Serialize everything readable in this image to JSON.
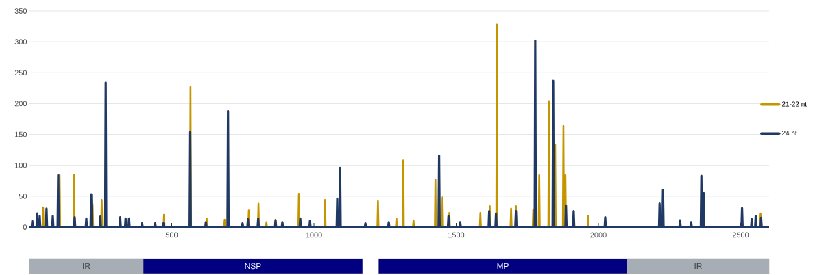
{
  "chart_data": [
    {
      "type": "line",
      "xlim": [
        0,
        2600
      ],
      "ylim": [
        0,
        350
      ],
      "xticks": [
        500,
        1000,
        1500,
        2000,
        2500
      ],
      "yticks": [
        0,
        50,
        100,
        150,
        200,
        250,
        300,
        350
      ],
      "grid": "y",
      "legend": "right",
      "marker": "none",
      "line_style": "solid",
      "series": [
        {
          "name": "21-22 nt",
          "color": "#c59500",
          "x": [
            0,
            46,
            48,
            50,
            104,
            106,
            108,
            155,
            157,
            159,
            220,
            222,
            224,
            252,
            254,
            256,
            471,
            473,
            475,
            564,
            566,
            568,
            621,
            623,
            625,
            684,
            686,
            688,
            769,
            771,
            773,
            803,
            805,
            807,
            831,
            833,
            835,
            863,
            865,
            867,
            945,
            947,
            949,
            1037,
            1039,
            1041,
            1223,
            1225,
            1227,
            1288,
            1290,
            1292,
            1312,
            1314,
            1316,
            1348,
            1350,
            1352,
            1425,
            1427,
            1429,
            1450,
            1452,
            1454,
            1474,
            1476,
            1478,
            1583,
            1585,
            1587,
            1616,
            1618,
            1620,
            1641,
            1643,
            1645,
            1691,
            1693,
            1695,
            1708,
            1710,
            1712,
            1769,
            1771,
            1773,
            1790,
            1792,
            1794,
            1824,
            1826,
            1828,
            1846,
            1848,
            1850,
            1875,
            1877,
            1879,
            1882,
            1884,
            1886,
            1962,
            1964,
            1966,
            2568,
            2570,
            2572,
            2600
          ],
          "values": [
            0,
            0,
            32,
            0,
            0,
            84,
            0,
            0,
            84,
            0,
            0,
            37,
            0,
            0,
            44,
            0,
            0,
            20,
            0,
            0,
            227,
            0,
            0,
            14,
            0,
            0,
            12,
            0,
            0,
            27,
            0,
            0,
            38,
            0,
            0,
            8,
            0,
            0,
            12,
            0,
            0,
            54,
            0,
            0,
            44,
            0,
            0,
            42,
            0,
            0,
            14,
            0,
            0,
            108,
            0,
            0,
            11,
            0,
            0,
            77,
            0,
            0,
            48,
            0,
            0,
            23,
            0,
            0,
            23,
            0,
            0,
            34,
            0,
            0,
            328,
            0,
            0,
            30,
            0,
            0,
            34,
            0,
            0,
            28,
            0,
            0,
            84,
            0,
            0,
            204,
            0,
            0,
            134,
            0,
            0,
            164,
            0,
            0,
            84,
            0,
            0,
            18,
            0,
            0,
            22,
            0,
            0
          ]
        },
        {
          "name": "24 nt",
          "color": "#1f3864",
          "x": [
            0,
            8,
            10,
            12,
            25,
            27,
            29,
            34,
            36,
            38,
            58,
            60,
            62,
            80,
            82,
            84,
            99,
            101,
            103,
            157,
            159,
            161,
            198,
            200,
            202,
            215,
            217,
            219,
            247,
            249,
            251,
            266,
            268,
            270,
            317,
            319,
            321,
            336,
            338,
            340,
            348,
            350,
            352,
            394,
            396,
            398,
            440,
            442,
            444,
            469,
            471,
            473,
            563,
            565,
            567,
            618,
            620,
            622,
            696,
            698,
            700,
            747,
            749,
            751,
            766,
            768,
            770,
            802,
            804,
            806,
            863,
            865,
            867,
            887,
            889,
            891,
            950,
            952,
            954,
            984,
            986,
            988,
            1080,
            1082,
            1084,
            1090,
            1092,
            1094,
            1179,
            1181,
            1183,
            1261,
            1263,
            1265,
            1438,
            1440,
            1442,
            1471,
            1473,
            1475,
            1512,
            1514,
            1516,
            1614,
            1616,
            1618,
            1638,
            1640,
            1642,
            1708,
            1710,
            1712,
            1776,
            1778,
            1780,
            1839,
            1841,
            1843,
            1884,
            1886,
            1888,
            1911,
            1913,
            1915,
            2022,
            2024,
            2026,
            2213,
            2215,
            2217,
            2225,
            2227,
            2229,
            2285,
            2287,
            2289,
            2324,
            2326,
            2328,
            2360,
            2362,
            2364,
            2368,
            2370,
            2372,
            2503,
            2505,
            2507,
            2537,
            2539,
            2541,
            2551,
            2553,
            2555,
            2570,
            2572,
            2574,
            2600
          ],
          "values": [
            0,
            0,
            10,
            0,
            0,
            22,
            0,
            0,
            18,
            0,
            0,
            30,
            0,
            0,
            18,
            0,
            0,
            84,
            0,
            0,
            16,
            0,
            0,
            14,
            0,
            0,
            53,
            0,
            0,
            17,
            0,
            0,
            234,
            0,
            0,
            16,
            0,
            0,
            14,
            0,
            0,
            14,
            0,
            0,
            6,
            0,
            0,
            6,
            0,
            0,
            6,
            0,
            0,
            154,
            0,
            0,
            8,
            0,
            0,
            188,
            0,
            0,
            6,
            0,
            0,
            13,
            0,
            0,
            14,
            0,
            0,
            11,
            0,
            0,
            8,
            0,
            0,
            14,
            0,
            0,
            10,
            0,
            0,
            46,
            0,
            0,
            96,
            0,
            0,
            6,
            0,
            0,
            8,
            0,
            0,
            116,
            0,
            0,
            18,
            0,
            0,
            8,
            0,
            0,
            26,
            0,
            0,
            22,
            0,
            0,
            26,
            0,
            0,
            302,
            0,
            0,
            237,
            0,
            0,
            35,
            0,
            0,
            26,
            0,
            0,
            16,
            0,
            0,
            38,
            0,
            0,
            60,
            0,
            0,
            11,
            0,
            0,
            8,
            0,
            0,
            83,
            0,
            0,
            55,
            0,
            0,
            31,
            0,
            0,
            13,
            0,
            0,
            18,
            0,
            0,
            15,
            0,
            0
          ]
        }
      ]
    },
    {
      "type": "bar",
      "orientation": "horizontal",
      "categories": [
        null
      ],
      "xlim": [
        0,
        2600
      ],
      "tick_labels": false,
      "series": [
        {
          "name": "IR",
          "color": "#a6adb4",
          "base": [
            0
          ],
          "values": [
            400
          ]
        },
        {
          "name": "NSP",
          "color": "#000080",
          "base": [
            400
          ],
          "values": [
            771
          ]
        },
        {
          "name": "MP",
          "color": "#000080",
          "base": [
            1227
          ],
          "values": [
            874
          ]
        },
        {
          "name": "IR",
          "color": "#a6adb4",
          "base": [
            2101
          ],
          "values": [
            499
          ]
        }
      ]
    }
  ]
}
